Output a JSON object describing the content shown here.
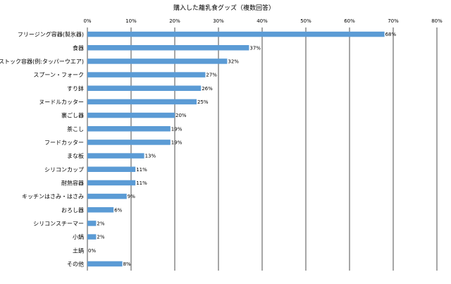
{
  "chart_data": {
    "type": "bar",
    "orientation": "horizontal",
    "title": "購入した離乳食グッズ（複数回答）",
    "xlabel": "",
    "ylabel": "",
    "xlim": [
      0,
      80
    ],
    "x_ticks": [
      0,
      10,
      20,
      30,
      40,
      50,
      60,
      70,
      80
    ],
    "tick_suffix": "%",
    "grid": true,
    "bar_color": "#5b9bd5",
    "categories": [
      "フリージング容器(製氷器)",
      "食器",
      "ストック容器(例:タッパーウエア)",
      "スプーン・フォーク",
      "すり鉢",
      "ヌードルカッター",
      "裏ごし器",
      "茶こし",
      "フードカッター",
      "まな板",
      "シリコンカップ",
      "耐熱容器",
      "キッチンはさみ・はさみ",
      "おろし器",
      "シリコンスチーマー",
      "小鍋",
      "土鍋",
      "その他"
    ],
    "values": [
      68,
      37,
      32,
      27,
      26,
      25,
      20,
      19,
      19,
      13,
      11,
      11,
      9,
      6,
      2,
      2,
      0,
      8
    ],
    "value_labels": [
      "68%",
      "37%",
      "32%",
      "27%",
      "26%",
      "25%",
      "20%",
      "19%",
      "19%",
      "13%",
      "11%",
      "11%",
      "9%",
      "6%",
      "2%",
      "2%",
      "0%",
      "8%"
    ]
  }
}
